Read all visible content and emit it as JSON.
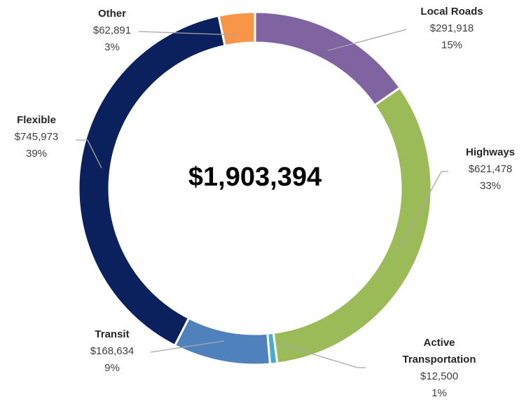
{
  "chart_data": {
    "type": "donut",
    "categories": [
      "Local Roads",
      "Highways",
      "Active Transportation",
      "Transit",
      "Flexible",
      "Other"
    ],
    "values": [
      291918,
      621478,
      12500,
      168634,
      745973,
      62891
    ],
    "value_labels": [
      "$291,918",
      "$621,478",
      "$12,500",
      "$168,634",
      "$745,973",
      "$62,891"
    ],
    "percent_labels": [
      "15%",
      "33%",
      "1%",
      "9%",
      "39%",
      "3%"
    ],
    "colors": [
      "#8064a2",
      "#9bbb59",
      "#4bacc6",
      "#4f81bd",
      "#0b215e",
      "#f79646"
    ],
    "total_label": "$1,903,394"
  }
}
